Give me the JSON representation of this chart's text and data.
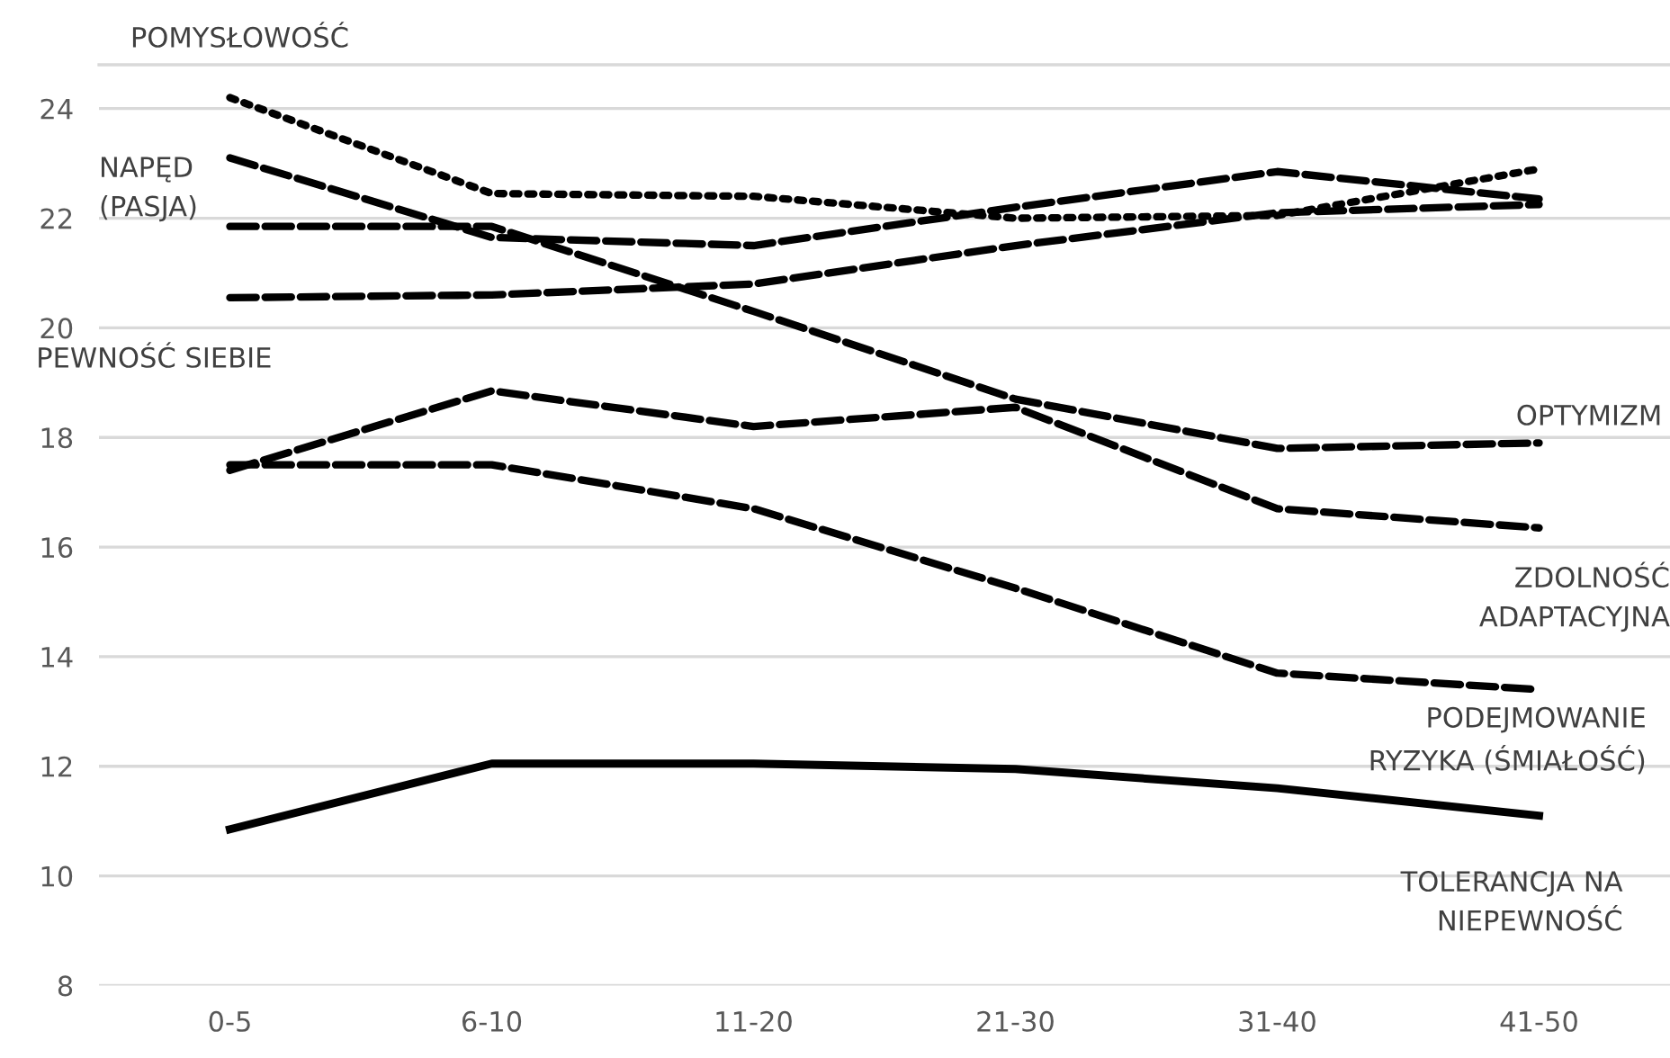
{
  "chart_data": {
    "type": "line",
    "categories": [
      "0-5",
      "6-10",
      "11-20",
      "21-30",
      "31-40",
      "41-50"
    ],
    "series": [
      {
        "name": "POMYSŁOWOŚĆ",
        "color": "#000000",
        "line_style": "dotted",
        "values": [
          24.2,
          22.45,
          22.4,
          22.0,
          22.05,
          22.9
        ]
      },
      {
        "name": "NAPĘD\n(PASJA)",
        "color": "#000000",
        "line_style": "dashed",
        "values": [
          23.1,
          21.65,
          21.5,
          22.2,
          22.85,
          22.35
        ]
      },
      {
        "name": "PEWNOŚĆ SIEBIE",
        "color": "#000000",
        "line_style": "dashed",
        "values": [
          20.55,
          20.6,
          20.8,
          21.5,
          22.1,
          22.25
        ]
      },
      {
        "name": "OPTYMIZM",
        "color": "#000000",
        "line_style": "dashed",
        "values": [
          21.85,
          21.85,
          20.3,
          18.7,
          17.8,
          17.9
        ]
      },
      {
        "name": "ZDOLNOŚĆ\nADAPTACYJNA",
        "color": "#000000",
        "line_style": "dashed",
        "values": [
          17.4,
          18.85,
          18.2,
          18.55,
          16.7,
          16.35
        ]
      },
      {
        "name": "PODEJMOWANIE\nRYZYKA (ŚMIAŁOŚĆ)",
        "color": "#000000",
        "line_style": "dashed",
        "values": [
          17.5,
          17.5,
          16.7,
          15.25,
          13.7,
          13.4
        ]
      },
      {
        "name": "TOLERANCJA NA\nNIEPEWNOŚĆ",
        "color": "#000000",
        "line_style": "solid",
        "values": [
          10.85,
          12.05,
          12.05,
          11.95,
          11.6,
          11.1
        ]
      }
    ],
    "ylim": [
      8,
      24.8
    ],
    "yticks": [
      8,
      10,
      12,
      14,
      16,
      18,
      20,
      22,
      24
    ],
    "grid": "y",
    "legend": false
  }
}
